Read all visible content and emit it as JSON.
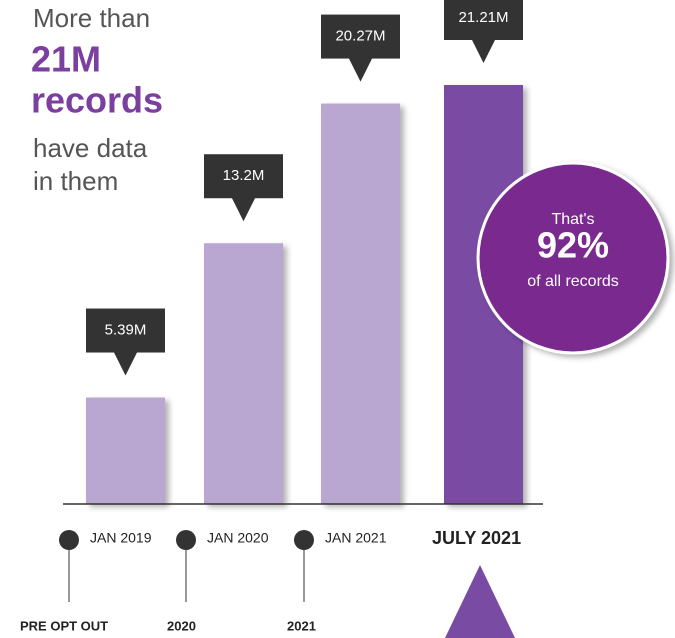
{
  "chart_data": {
    "type": "bar",
    "headline": [
      "More than",
      "21M",
      "records",
      "have data",
      "in them"
    ],
    "categories": [
      "JAN 2019",
      "JAN 2020",
      "JAN 2021",
      "JULY 2021"
    ],
    "values": [
      5.39,
      13.2,
      20.27,
      21.21
    ],
    "value_labels": [
      "5.39M",
      "13.2M",
      "20.27M",
      "21.21M"
    ],
    "colors": [
      "#b9a6d1",
      "#b9a6d1",
      "#b9a6d1",
      "#7a4ba2"
    ],
    "callout": {
      "top": "That's",
      "value": "92%",
      "bottom": "of all records"
    },
    "milestones": [
      "PRE OPT OUT",
      "2020",
      "2021"
    ]
  }
}
